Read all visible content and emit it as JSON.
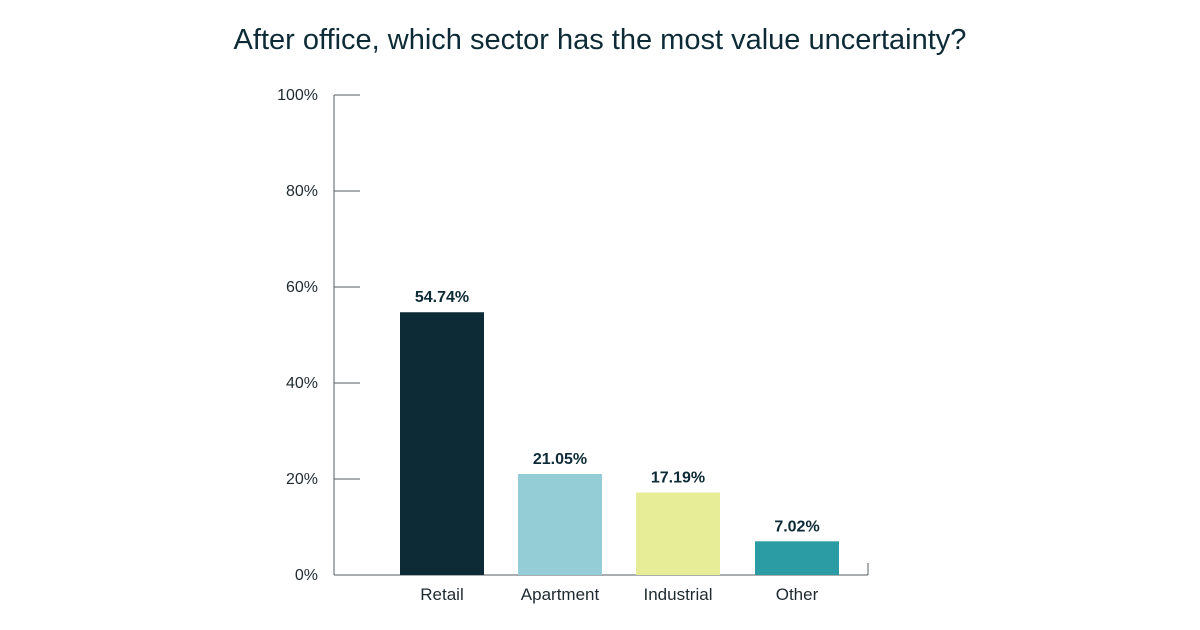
{
  "chart_data": {
    "type": "bar",
    "title": "After office, which sector has the most value uncertainty?",
    "xlabel": "",
    "ylabel": "",
    "categories": [
      "Retail",
      "Apartment",
      "Industrial",
      "Other"
    ],
    "values": [
      54.74,
      21.05,
      17.19,
      7.02
    ],
    "value_labels": [
      "54.74%",
      "21.05%",
      "17.19%",
      "7.02%"
    ],
    "colors": [
      "#0d2b36",
      "#94cdd6",
      "#e7ec97",
      "#2b9ca4"
    ],
    "ylim": [
      0,
      100
    ],
    "yticks": [
      0,
      20,
      40,
      60,
      80,
      100
    ],
    "ytick_labels": [
      "0%",
      "20%",
      "40%",
      "60%",
      "80%",
      "100%"
    ],
    "grid": false,
    "legend": "none"
  }
}
